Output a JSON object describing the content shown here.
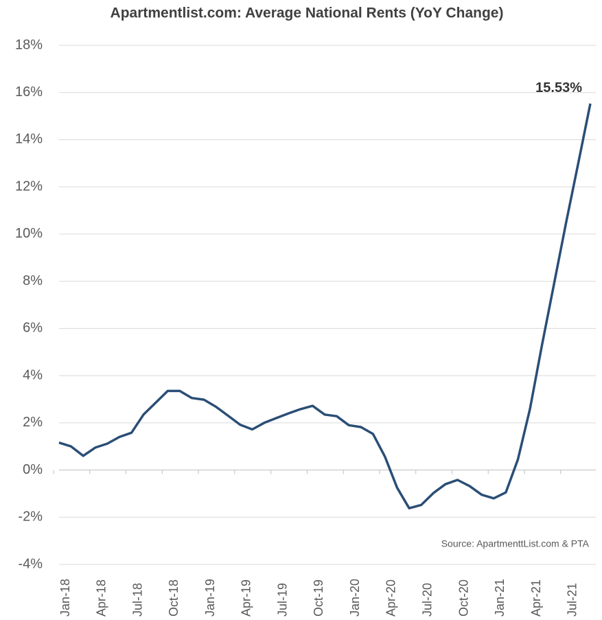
{
  "chart_data": {
    "type": "line",
    "title": "Apartmentlist.com:  Average National Rents (YoY Change)",
    "source": "Source: ApartmenttList.com & PTA",
    "categories": [
      "Jan-18",
      null,
      null,
      "Apr-18",
      null,
      null,
      "Jul-18",
      null,
      null,
      "Oct-18",
      null,
      null,
      "Jan-19",
      null,
      null,
      "Apr-19",
      null,
      null,
      "Jul-19",
      null,
      null,
      "Oct-19",
      null,
      null,
      "Jan-20",
      null,
      null,
      "Apr-20",
      null,
      null,
      "Jul-20",
      null,
      null,
      "Oct-20",
      null,
      null,
      "Jan-21",
      null,
      null,
      "Apr-21",
      null,
      null,
      "Jul-21",
      null,
      null
    ],
    "series": [
      {
        "name": "Average National Rents (YoY Change)",
        "color": "#2a4e76",
        "values": [
          1.16,
          1.0,
          0.6,
          0.95,
          1.12,
          1.4,
          1.58,
          2.35,
          2.85,
          3.35,
          3.35,
          3.05,
          2.98,
          2.68,
          2.3,
          1.92,
          1.72,
          2.0,
          2.2,
          2.4,
          2.58,
          2.72,
          2.35,
          2.28,
          1.9,
          1.82,
          1.53,
          0.55,
          -0.75,
          -1.62,
          -1.48,
          -0.98,
          -0.6,
          -0.42,
          -0.68,
          -1.05,
          -1.2,
          -0.95,
          0.45,
          2.58,
          5.3,
          7.9,
          10.5,
          13.0,
          15.53
        ],
        "value_labels": [
          null,
          null,
          null,
          null,
          null,
          null,
          null,
          null,
          null,
          null,
          null,
          null,
          null,
          null,
          null,
          null,
          null,
          null,
          null,
          null,
          null,
          null,
          null,
          null,
          null,
          null,
          null,
          null,
          null,
          null,
          null,
          null,
          null,
          null,
          null,
          null,
          null,
          null,
          null,
          null,
          null,
          null,
          null,
          null,
          "15.53%"
        ]
      }
    ],
    "ylim": [
      -4,
      18
    ],
    "yticks": [
      {
        "value": -4,
        "label": "-4%"
      },
      {
        "value": -2,
        "label": "-2%"
      },
      {
        "value": 0,
        "label": "0%"
      },
      {
        "value": 2,
        "label": "2%"
      },
      {
        "value": 4,
        "label": "4%"
      },
      {
        "value": 6,
        "label": "6%"
      },
      {
        "value": 8,
        "label": "8%"
      },
      {
        "value": 10,
        "label": "10%"
      },
      {
        "value": 12,
        "label": "12%"
      },
      {
        "value": 14,
        "label": "14%"
      },
      {
        "value": 16,
        "label": "16%"
      },
      {
        "value": 18,
        "label": "18%"
      }
    ],
    "grid": true
  }
}
